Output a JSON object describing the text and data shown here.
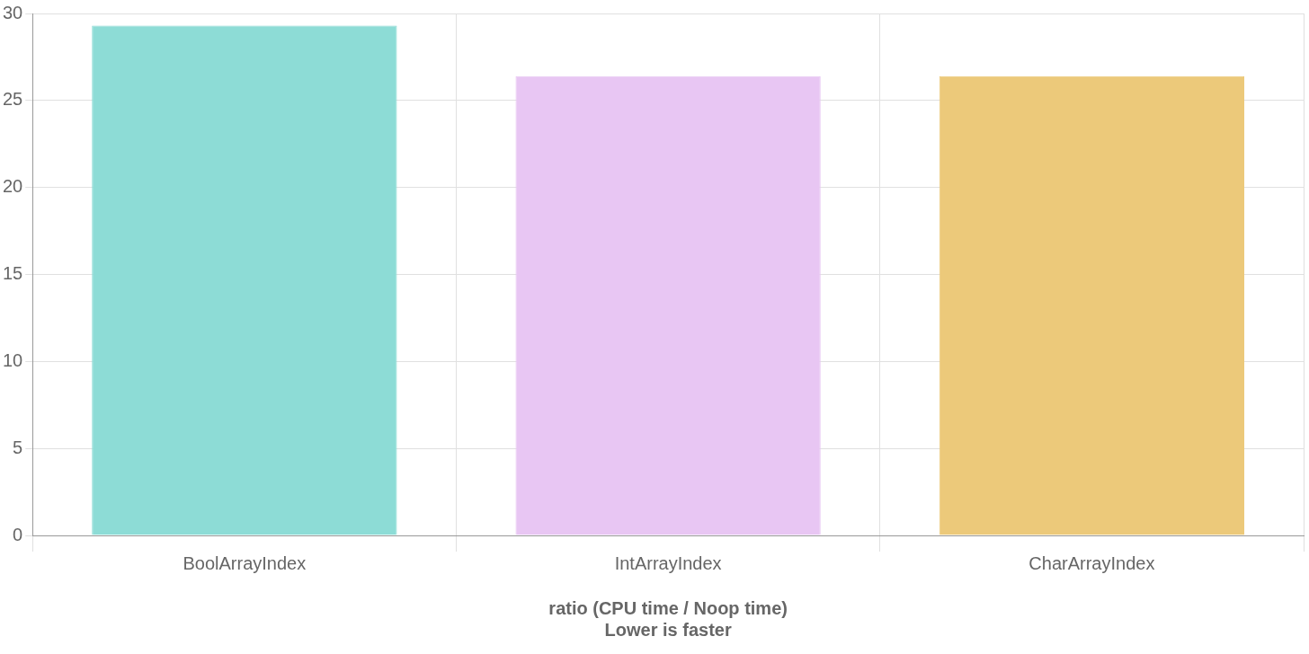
{
  "chart_data": {
    "type": "bar",
    "xlabel": "ratio (CPU time / Noop time)\nLower is faster",
    "categories": [
      "BoolArrayIndex",
      "IntArrayIndex",
      "CharArrayIndex"
    ],
    "values": [
      29.3,
      26.4,
      26.4
    ],
    "colors": [
      "#8ddcd6",
      "#e8c6f3",
      "#ecc97a"
    ],
    "ylim": [
      0,
      30
    ],
    "yticks": [
      0,
      5,
      10,
      15,
      20,
      25,
      30
    ],
    "grid": true,
    "legend": false
  }
}
